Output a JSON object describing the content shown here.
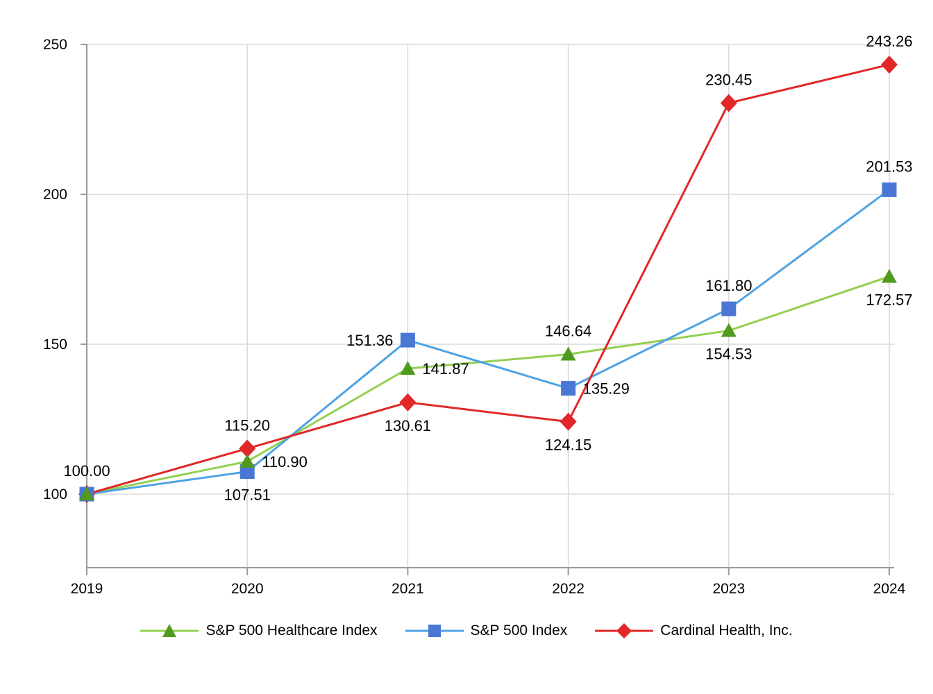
{
  "chart_data": {
    "type": "line",
    "x": [
      "2019",
      "2020",
      "2021",
      "2022",
      "2023",
      "2024"
    ],
    "y_ticks": [
      100,
      150,
      200,
      250
    ],
    "y_tick_labels": [
      "100",
      "150",
      "200",
      "250"
    ],
    "ylim": [
      75,
      250
    ],
    "grid": true,
    "legend_position": "bottom",
    "colors": {
      "grid": "#d9d9d9",
      "axis": "#9a9a9a",
      "label": "#000000",
      "background": "#ffffff"
    },
    "series": [
      {
        "name": "S&P 500 Healthcare Index",
        "marker": "triangle",
        "line_color": "#92d050",
        "marker_color": "#4f9a1f",
        "values": [
          100.0,
          110.9,
          141.87,
          146.64,
          154.53,
          172.57
        ],
        "labels": [
          "100.00",
          "110.90",
          "141.87",
          "146.64",
          "154.53",
          "172.57"
        ],
        "label_placements": [
          "above",
          "right",
          "right",
          "above",
          "below",
          "below"
        ]
      },
      {
        "name": "S&P 500 Index",
        "marker": "square",
        "line_color": "#4da3e3",
        "marker_color": "#4a77d4",
        "values": [
          100.0,
          107.51,
          151.36,
          135.29,
          161.8,
          201.53
        ],
        "labels": [
          null,
          "107.51",
          "151.36",
          "135.29",
          "161.80",
          "201.53"
        ],
        "label_placements": [
          null,
          "below",
          "left",
          "right",
          "above",
          "above"
        ]
      },
      {
        "name": "Cardinal Health, Inc.",
        "marker": "diamond",
        "line_color": "#e12727",
        "marker_color": "#e12727",
        "values": [
          100.0,
          115.2,
          130.61,
          124.15,
          230.45,
          243.26
        ],
        "labels": [
          null,
          "115.20",
          "130.61",
          "124.15",
          "230.45",
          "243.26"
        ],
        "label_placements": [
          null,
          "above",
          "below",
          "below",
          "above",
          "above"
        ]
      }
    ]
  }
}
